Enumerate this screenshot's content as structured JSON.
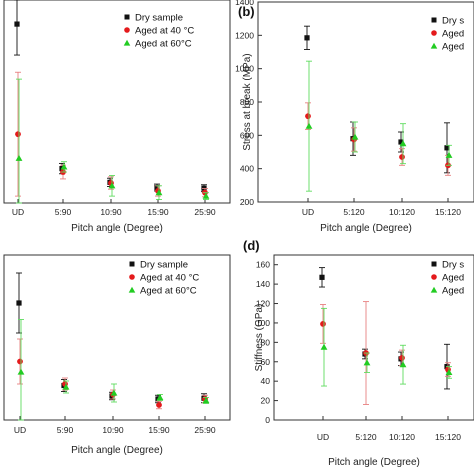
{
  "figure": {
    "panel_labels": {
      "b": "(b)",
      "d": "(d)"
    }
  },
  "colors": {
    "dry": "#111111",
    "aged40": "#e41a1c",
    "aged60": "#22cc22",
    "aged40_err": "#e88080",
    "aged60_err": "#5fdc5f",
    "axis": "#333333"
  },
  "chart_data": [
    {
      "panel": "a",
      "type": "scatter",
      "xlabel": "Pitch angle (Degree)",
      "ylabel": "",
      "categories": [
        "UD",
        "5:90",
        "10:90",
        "15:90",
        "25:90"
      ],
      "legend": {
        "placement": "top-right",
        "entries": [
          "Dry sample",
          "Aged at 40 °C",
          "Aged at 60°C"
        ]
      },
      "series": [
        {
          "name": "Dry sample",
          "marker": "square",
          "values": [
            80,
            38,
            34,
            32.5,
            32.3
          ],
          "err": [
            9,
            1.5,
            1.2,
            1,
            1
          ]
        },
        {
          "name": "Aged at 40 °C",
          "marker": "circle",
          "values": [
            48,
            37,
            33.8,
            31.5,
            31
          ],
          "err": [
            18,
            2,
            1.8,
            1.5,
            1.2
          ]
        },
        {
          "name": "Aged at 60°C",
          "marker": "triangle",
          "values": [
            41,
            38.5,
            33,
            31,
            30
          ],
          "err": [
            23,
            1.5,
            3,
            2,
            1
          ]
        }
      ]
    },
    {
      "panel": "b",
      "type": "scatter",
      "xlabel": "Pitch angle (Degree)",
      "ylabel": "Stress at break (MPa)",
      "ylim": [
        200,
        1400
      ],
      "yticks": [
        200,
        400,
        600,
        800,
        1000,
        1200,
        1400
      ],
      "categories": [
        "UD",
        "5:120",
        "10:120",
        "15:120"
      ],
      "legend": {
        "placement": "top-right",
        "entries": [
          "Dry s",
          "Aged",
          "Aged"
        ]
      },
      "series": [
        {
          "name": "Dry s",
          "marker": "square",
          "values": [
            1185,
            580,
            560,
            525
          ],
          "err": [
            70,
            100,
            60,
            150
          ]
        },
        {
          "name": "Aged",
          "marker": "circle",
          "values": [
            715,
            575,
            470,
            420
          ],
          "err": [
            80,
            70,
            50,
            60
          ]
        },
        {
          "name": "Aged",
          "marker": "triangle",
          "values": [
            655,
            590,
            550,
            480
          ],
          "err": [
            390,
            90,
            120,
            60
          ]
        }
      ]
    },
    {
      "panel": "c",
      "type": "scatter",
      "xlabel": "Pitch angle (Degree)",
      "ylabel": "",
      "categories": [
        "UD",
        "5:90",
        "10:90",
        "15:90",
        "25:90"
      ],
      "legend": {
        "placement": "top-right",
        "entries": [
          "Dry sample",
          "Aged at 40 °C",
          "Aged at 60°C"
        ]
      },
      "series": [
        {
          "name": "Dry sample",
          "marker": "square",
          "values": [
            128,
            73,
            66,
            64,
            64.5
          ],
          "err": [
            20,
            4,
            2.5,
            2.5,
            3
          ]
        },
        {
          "name": "Aged at 40 °C",
          "marker": "circle",
          "values": [
            89,
            74,
            67,
            60,
            64
          ],
          "err": [
            15,
            4,
            3,
            2.5,
            2.5
          ]
        },
        {
          "name": "Aged at 60°C",
          "marker": "triangle",
          "values": [
            82,
            72,
            68,
            65,
            63
          ],
          "err": [
            35,
            4,
            6,
            2,
            2
          ]
        }
      ]
    },
    {
      "panel": "d",
      "type": "scatter",
      "xlabel": "Pitch angle (Degree)",
      "ylabel": "Stiffness (GPa)",
      "ylim": [
        0,
        160
      ],
      "yticks": [
        0,
        20,
        40,
        60,
        80,
        100,
        120,
        140,
        160
      ],
      "categories": [
        "UD",
        "5:120",
        "10:120",
        "15:120"
      ],
      "legend": {
        "placement": "top-right",
        "entries": [
          "Dry s",
          "Aged",
          "Aged"
        ]
      },
      "series": [
        {
          "name": "Dry s",
          "marker": "square",
          "values": [
            147,
            68,
            63,
            55
          ],
          "err": [
            10,
            5,
            7,
            23
          ]
        },
        {
          "name": "Aged",
          "marker": "circle",
          "values": [
            99,
            69,
            64,
            52
          ],
          "err": [
            20,
            53,
            8,
            7
          ]
        },
        {
          "name": "Aged",
          "marker": "triangle",
          "values": [
            75,
            59,
            57,
            49
          ],
          "err": [
            40,
            10,
            20,
            6
          ]
        }
      ]
    }
  ]
}
